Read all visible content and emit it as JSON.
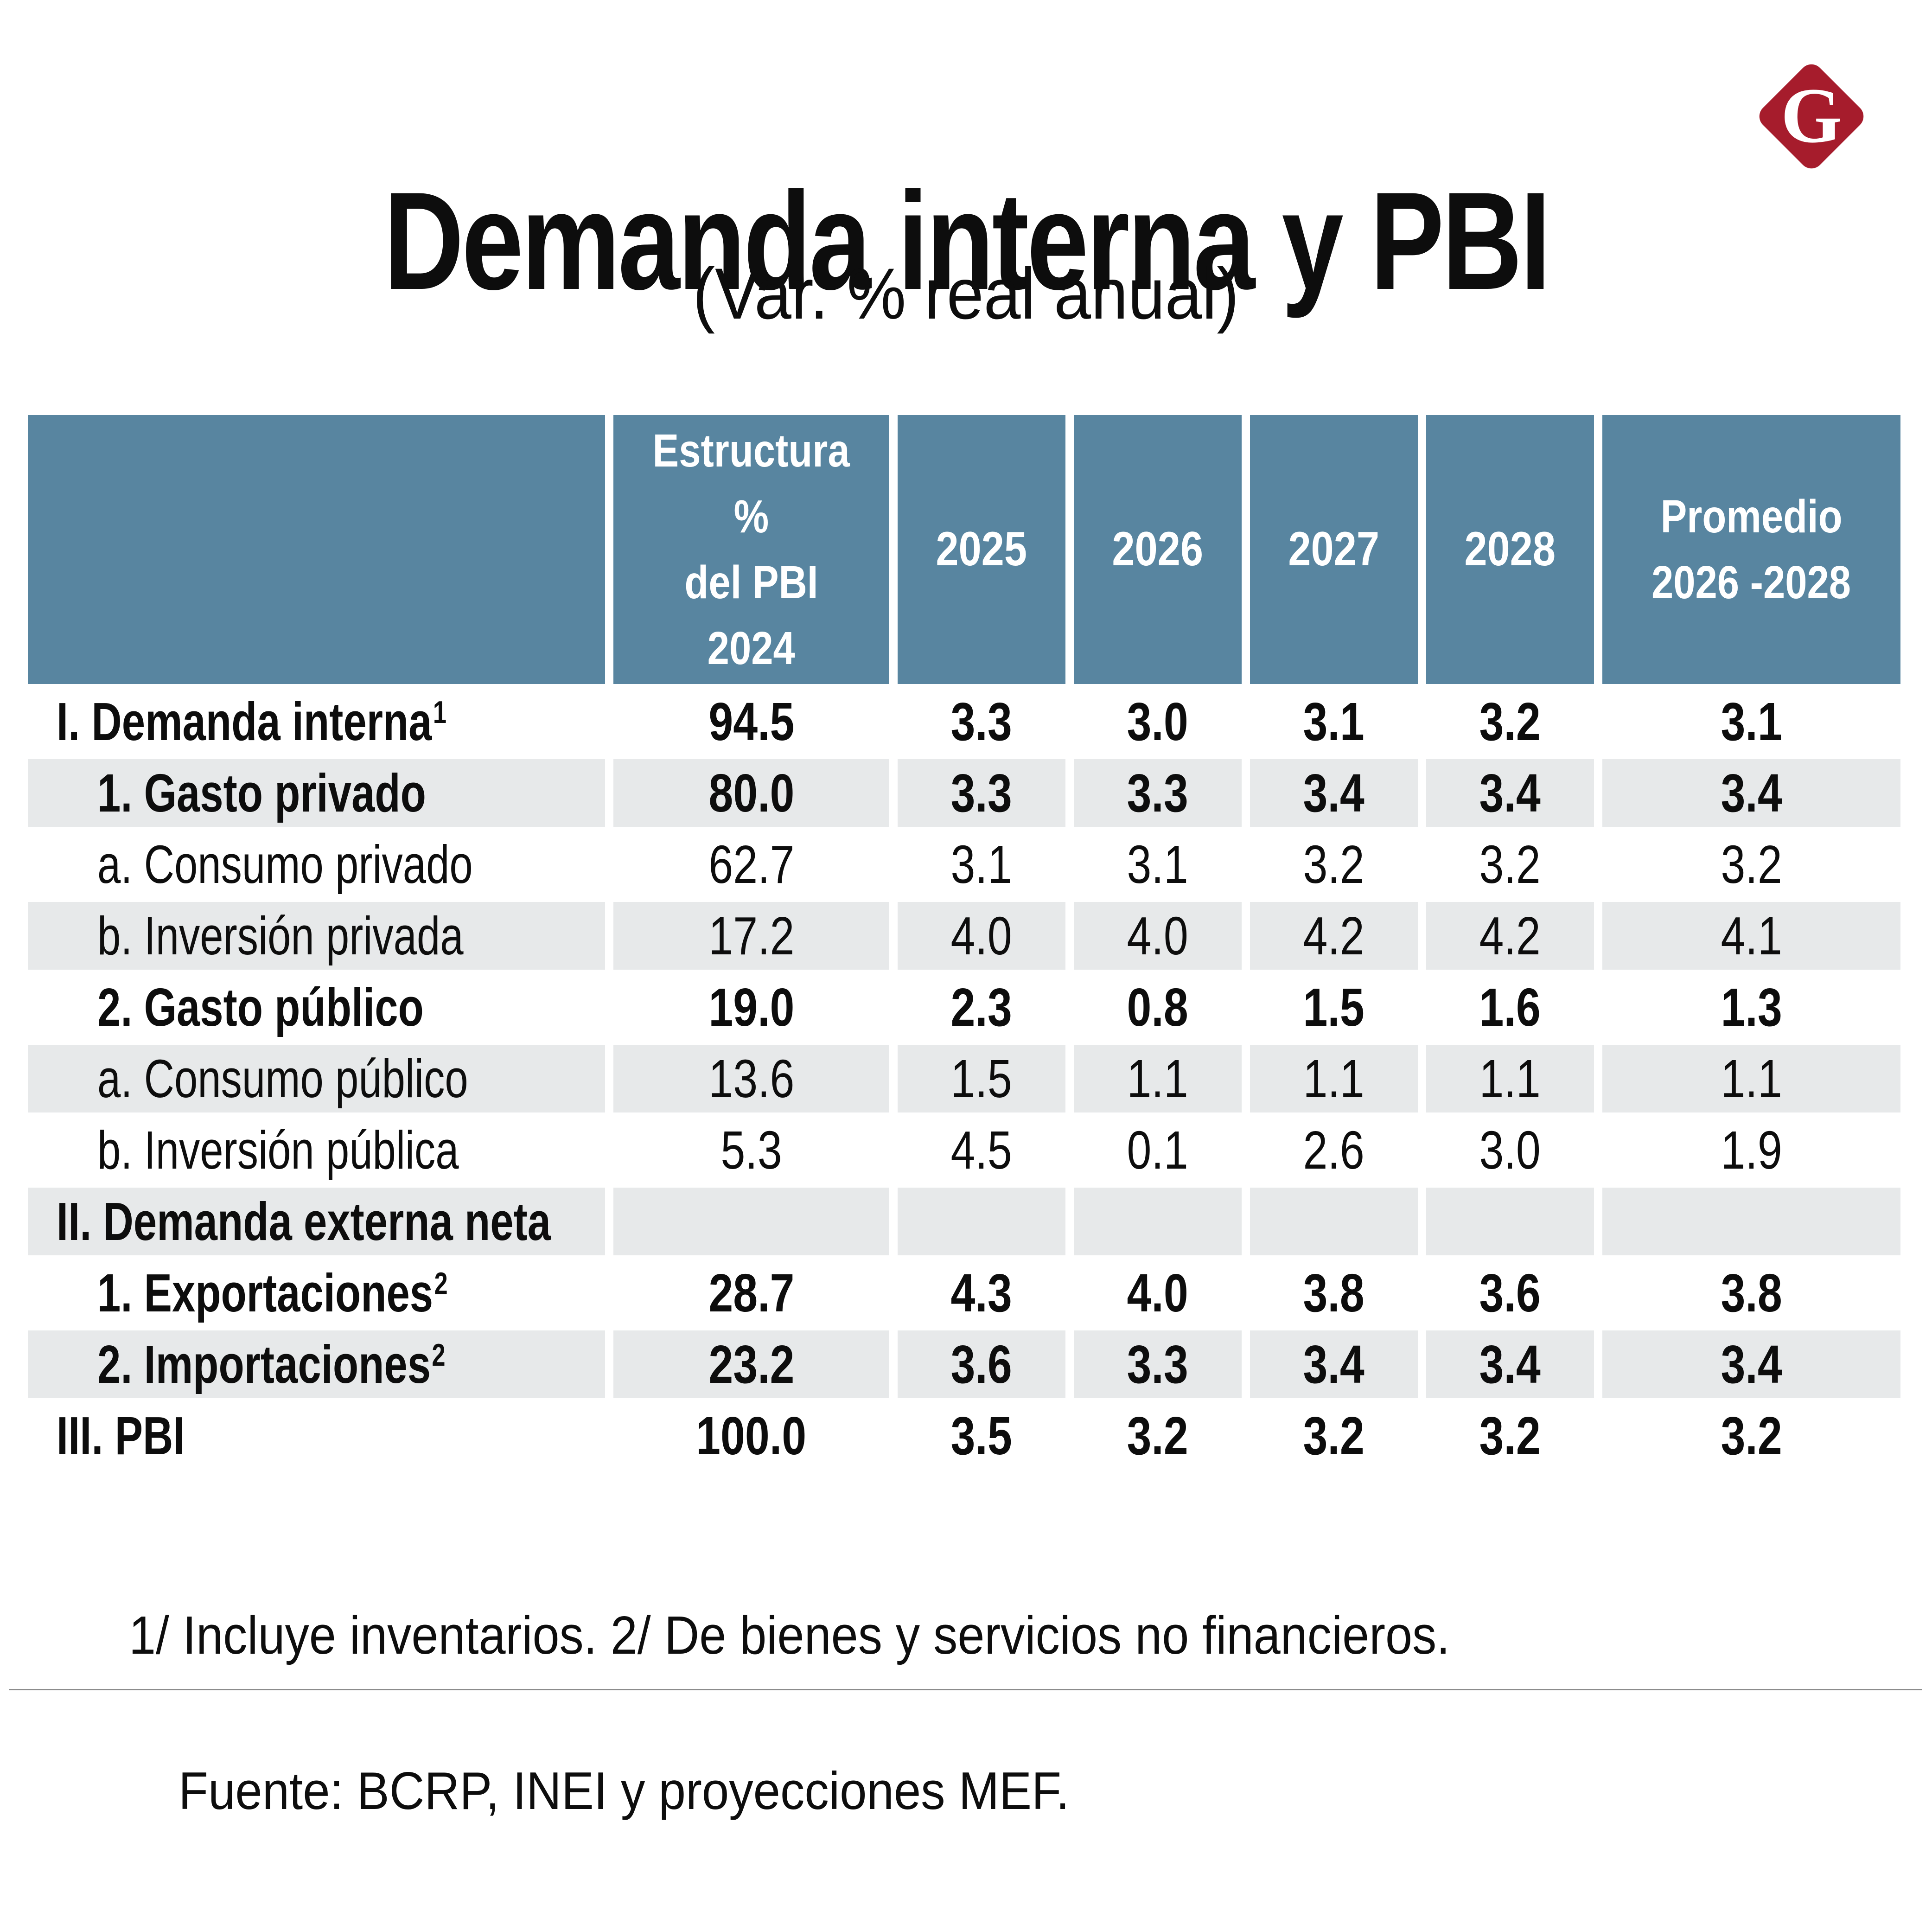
{
  "branding": {
    "logo_letter": "G",
    "logo_color": "#A61C2C"
  },
  "chart_data": {
    "type": "table",
    "title": "Demanda interna y PBI",
    "subtitle": "(Var. % real anual)",
    "columns": [
      "",
      "Estructura % del PBI 2024",
      "2025",
      "2026",
      "2027",
      "2028",
      "Promedio 2026 -2028"
    ],
    "col_estructura_lines": [
      "Estructura",
      "%",
      "del PBI",
      "2024"
    ],
    "year_labels": [
      "2025",
      "2026",
      "2027",
      "2028"
    ],
    "col_promedio_lines": [
      "Promedio",
      "2026 -2028"
    ],
    "rows": [
      {
        "label": "I. Demanda interna",
        "sup": "1",
        "indent": 1,
        "bold": true,
        "shaded": false,
        "values": [
          "94.5",
          "3.3",
          "3.0",
          "3.1",
          "3.2",
          "3.1"
        ]
      },
      {
        "label": "1. Gasto privado",
        "sup": "",
        "indent": 2,
        "bold": true,
        "shaded": true,
        "values": [
          "80.0",
          "3.3",
          "3.3",
          "3.4",
          "3.4",
          "3.4"
        ]
      },
      {
        "label": "a. Consumo privado",
        "sup": "",
        "indent": 2,
        "bold": false,
        "shaded": false,
        "values": [
          "62.7",
          "3.1",
          "3.1",
          "3.2",
          "3.2",
          "3.2"
        ]
      },
      {
        "label": "b. Inversión privada",
        "sup": "",
        "indent": 2,
        "bold": false,
        "shaded": true,
        "values": [
          "17.2",
          "4.0",
          "4.0",
          "4.2",
          "4.2",
          "4.1"
        ]
      },
      {
        "label": "2. Gasto público",
        "sup": "",
        "indent": 2,
        "bold": true,
        "shaded": false,
        "values": [
          "19.0",
          "2.3",
          "0.8",
          "1.5",
          "1.6",
          "1.3"
        ]
      },
      {
        "label": "a. Consumo público",
        "sup": "",
        "indent": 2,
        "bold": false,
        "shaded": true,
        "values": [
          "13.6",
          "1.5",
          "1.1",
          "1.1",
          "1.1",
          "1.1"
        ]
      },
      {
        "label": "b. Inversión pública",
        "sup": "",
        "indent": 2,
        "bold": false,
        "shaded": false,
        "values": [
          "5.3",
          "4.5",
          "0.1",
          "2.6",
          "3.0",
          "1.9"
        ]
      },
      {
        "label": "II. Demanda externa neta",
        "sup": "",
        "indent": 1,
        "bold": true,
        "shaded": true,
        "values": [
          "",
          "",
          "",
          "",
          "",
          ""
        ]
      },
      {
        "label": "1. Exportaciones",
        "sup": "2",
        "indent": 2,
        "bold": true,
        "shaded": false,
        "values": [
          "28.7",
          "4.3",
          "4.0",
          "3.8",
          "3.6",
          "3.8"
        ]
      },
      {
        "label": "2. Importaciones",
        "sup": "2",
        "indent": 2,
        "bold": true,
        "shaded": true,
        "values": [
          "23.2",
          "3.6",
          "3.3",
          "3.4",
          "3.4",
          "3.4"
        ]
      },
      {
        "label": "III. PBI",
        "sup": "",
        "indent": 1,
        "bold": true,
        "shaded": false,
        "values": [
          "100.0",
          "3.5",
          "3.2",
          "3.2",
          "3.2",
          "3.2"
        ]
      }
    ]
  },
  "footnote": "1/ Incluye inventarios. 2/ De bienes y servicios no financieros.",
  "source": "Fuente: BCRP, INEI y proyecciones MEF.",
  "colors": {
    "header_bg": "#5885A0",
    "shaded_row_bg": "#E7E9EA",
    "logo_red": "#A61C2C",
    "divider": "#8C8C8C",
    "text": "#0D0D0D",
    "header_text": "#FFFFFF"
  }
}
